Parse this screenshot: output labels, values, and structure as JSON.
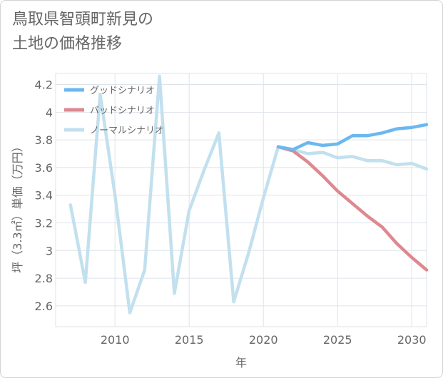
{
  "title_lines": [
    "鳥取県智頭町新見の",
    "土地の価格推移"
  ],
  "chart_data": {
    "type": "line",
    "title": "鳥取県智頭町新見の土地の価格推移",
    "xlabel": "年",
    "ylabel": "坪（3.3㎡）単価（万円）",
    "xlim": [
      2006,
      2031
    ],
    "ylim": [
      2.45,
      4.28
    ],
    "x_ticks": [
      2010,
      2015,
      2020,
      2025,
      2030
    ],
    "y_ticks": [
      2.6,
      2.8,
      3,
      3.2,
      3.4,
      3.6,
      3.8,
      4,
      4.2
    ],
    "x_tick_labels": [
      "2010",
      "2015",
      "2020",
      "2025",
      "2030"
    ],
    "y_tick_labels": [
      "2.6",
      "2.8",
      "3",
      "3.2",
      "3.4",
      "3.6",
      "3.8",
      "4",
      "4.2"
    ],
    "legend_position": "top-left",
    "series": [
      {
        "name": "グッドシナリオ",
        "color": "#6bb8f0",
        "x": [
          2021,
          2022,
          2023,
          2024,
          2025,
          2026,
          2027,
          2028,
          2029,
          2030,
          2031
        ],
        "values": [
          3.75,
          3.73,
          3.78,
          3.76,
          3.77,
          3.83,
          3.83,
          3.85,
          3.88,
          3.89,
          3.91
        ]
      },
      {
        "name": "バッドシナリオ",
        "color": "#de8890",
        "x": [
          2021,
          2022,
          2023,
          2024,
          2025,
          2026,
          2027,
          2028,
          2029,
          2030,
          2031
        ],
        "values": [
          3.75,
          3.72,
          3.64,
          3.54,
          3.43,
          3.34,
          3.25,
          3.17,
          3.05,
          2.95,
          2.86
        ]
      },
      {
        "name": "ノーマルシナリオ",
        "color": "#c2e0ee",
        "x": [
          2007,
          2008,
          2009,
          2010,
          2011,
          2012,
          2013,
          2014,
          2015,
          2016,
          2017,
          2018,
          2019,
          2020,
          2021,
          2022,
          2023,
          2024,
          2025,
          2026,
          2027,
          2028,
          2029,
          2030,
          2031
        ],
        "values": [
          3.33,
          2.77,
          4.13,
          3.4,
          2.55,
          2.86,
          4.26,
          2.69,
          3.29,
          3.58,
          3.85,
          2.63,
          2.98,
          3.38,
          3.75,
          3.73,
          3.7,
          3.71,
          3.67,
          3.68,
          3.65,
          3.65,
          3.62,
          3.63,
          3.59
        ]
      }
    ]
  }
}
